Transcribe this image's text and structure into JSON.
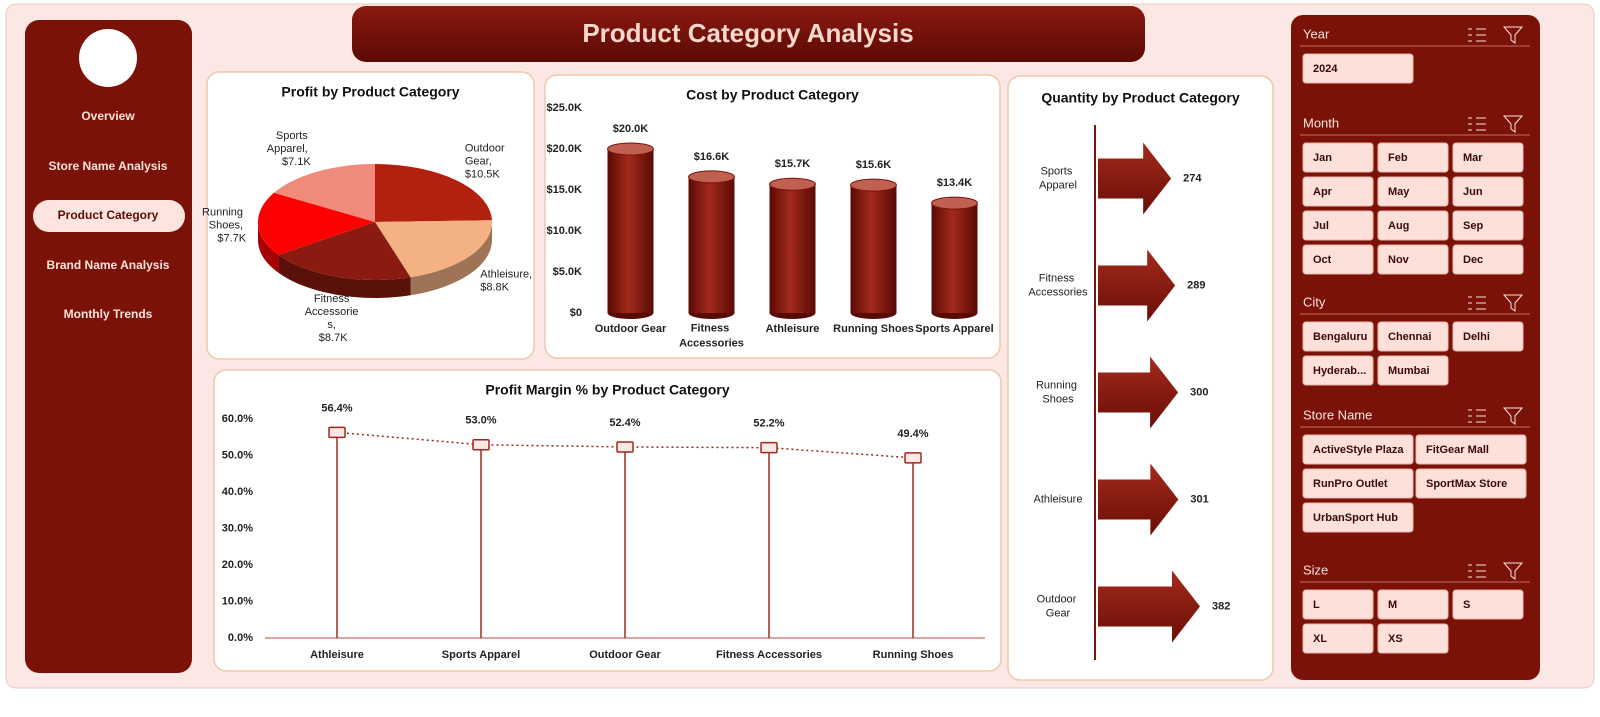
{
  "header": {
    "title": "Product Category Analysis"
  },
  "nav": {
    "items": [
      "Overview",
      "Store Name Analysis",
      "Product Category",
      "Brand Name Analysis",
      "Monthly Trends"
    ],
    "selected": 2
  },
  "slicers": [
    {
      "title": "Year",
      "items": [
        "2024"
      ]
    },
    {
      "title": "Month",
      "items": [
        "Jan",
        "Feb",
        "Mar",
        "Apr",
        "May",
        "Jun",
        "Jul",
        "Aug",
        "Sep",
        "Oct",
        "Nov",
        "Dec"
      ]
    },
    {
      "title": "City",
      "items": [
        "Bengaluru",
        "Chennai",
        "Delhi",
        "Hyderab...",
        "Mumbai"
      ]
    },
    {
      "title": "Store Name",
      "items": [
        "ActiveStyle Plaza",
        "FitGear Mall",
        "RunPro Outlet",
        "SportMax Store",
        "UrbanSport Hub"
      ]
    },
    {
      "title": "Size",
      "items": [
        "L",
        "M",
        "S",
        "XL",
        "XS"
      ]
    }
  ],
  "chart_data": [
    {
      "type": "pie",
      "title": "Profit by Product Category",
      "values": [
        10500,
        8800,
        8700,
        7700,
        7100
      ],
      "value_labels": [
        "Outdoor Gear, $10.5K",
        "Athleisure, $8.8K",
        "Fitness Accessorie s, $8.7K",
        "Running Shoes, $7.7K",
        "Sports Apparel, $7.1K"
      ],
      "colors": [
        "#b3200f",
        "#f4b183",
        "#8b1a10",
        "#ff0000",
        "#f08a7a"
      ]
    },
    {
      "type": "bar",
      "title": "Cost by Product Category",
      "categories": [
        "Outdoor Gear",
        "Fitness Accessories",
        "Athleisure",
        "Running Shoes",
        "Sports Apparel"
      ],
      "values": [
        20000,
        16600,
        15700,
        15600,
        13400
      ],
      "value_labels": [
        "$20.0K",
        "$16.6K",
        "$15.7K",
        "$15.6K",
        "$13.4K"
      ],
      "color": "#8b1a10",
      "ylim": [
        0,
        25000
      ],
      "yticks": [
        {
          "value": 0,
          "label": "$0"
        },
        {
          "value": 5000,
          "label": "$5.0K"
        },
        {
          "value": 10000,
          "label": "$10.0K"
        },
        {
          "value": 15000,
          "label": "$15.0K"
        },
        {
          "value": 20000,
          "label": "$20.0K"
        },
        {
          "value": 25000,
          "label": "$25.0K"
        }
      ]
    },
    {
      "type": "bar",
      "horizontal": true,
      "title": "Quantity by Product Category",
      "categories": [
        "Sports Apparel",
        "Fitness Accessories",
        "Running Shoes",
        "Athleisure",
        "Outdoor Gear"
      ],
      "values": [
        274,
        289,
        300,
        301,
        382
      ],
      "color": "#8b1a10"
    },
    {
      "type": "line",
      "title": "Profit Margin % by Product Category",
      "categories": [
        "Athleisure",
        "Sports Apparel",
        "Outdoor Gear",
        "Fitness Accessories",
        "Running Shoes"
      ],
      "values": [
        56.4,
        53.0,
        52.4,
        52.2,
        49.4
      ],
      "value_labels": [
        "56.4%",
        "53.0%",
        "52.4%",
        "52.2%",
        "49.4%"
      ],
      "color": "#a0281a",
      "ylim": [
        0,
        65
      ],
      "yticks": [
        {
          "value": 0,
          "label": "0.0%"
        },
        {
          "value": 10,
          "label": "10.0%"
        },
        {
          "value": 20,
          "label": "20.0%"
        },
        {
          "value": 30,
          "label": "30.0%"
        },
        {
          "value": 40,
          "label": "40.0%"
        },
        {
          "value": 50,
          "label": "50.0%"
        },
        {
          "value": 60,
          "label": "60.0%"
        }
      ]
    }
  ]
}
